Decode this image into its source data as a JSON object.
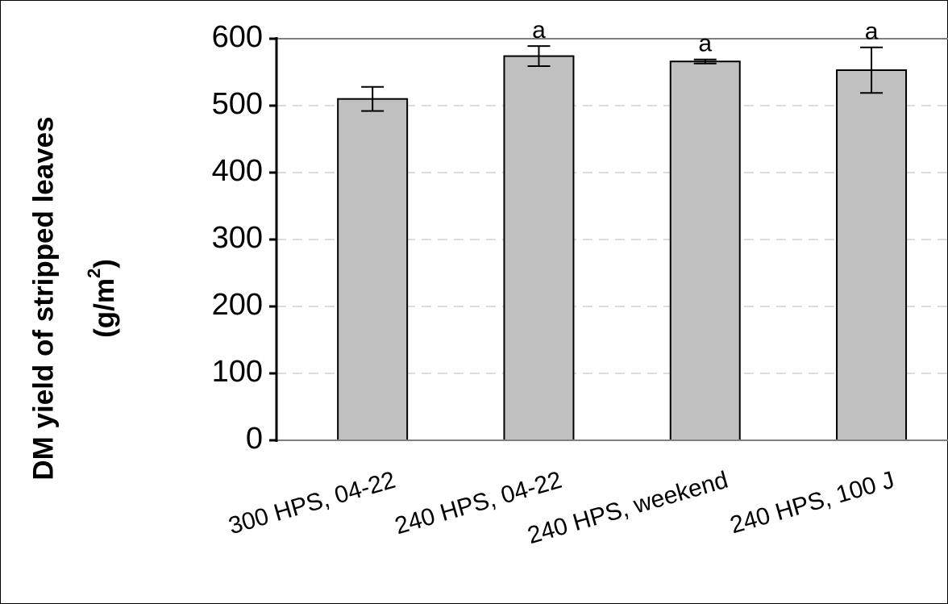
{
  "chart_data": {
    "type": "bar",
    "y_label": [
      "DM yield of stripped leaves",
      "(g/m",
      "2",
      ")"
    ],
    "categories": [
      "300 HPS, 04-22",
      "240 HPS, 04-22",
      "240 HPS, weekend",
      "240 HPS, 100 J"
    ],
    "values": [
      510,
      574,
      566,
      553
    ],
    "errors": [
      18,
      15,
      3,
      34
    ],
    "annotations": [
      null,
      "a",
      "a",
      "a"
    ],
    "color": "#c0c0c0",
    "ylim": [
      0,
      600
    ],
    "yticks": [
      0,
      100,
      200,
      300,
      400,
      500,
      600
    ],
    "grid": true
  }
}
